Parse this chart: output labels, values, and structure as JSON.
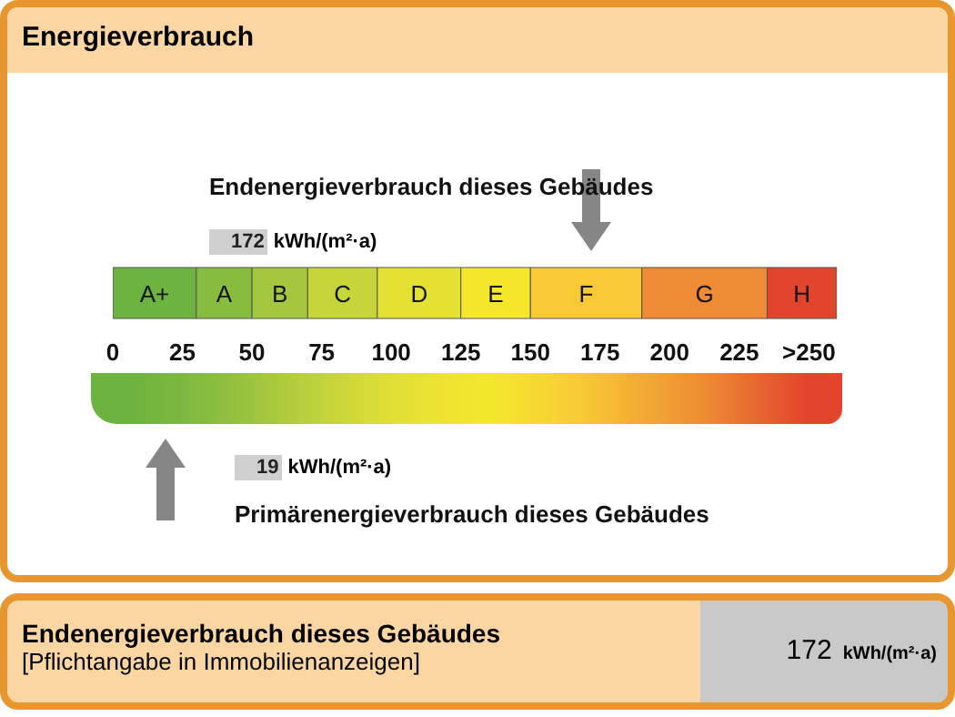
{
  "chart_data": {
    "type": "bar",
    "orientation": "horizontal",
    "stacked": true,
    "title": "Energieverbrauch",
    "categories": [
      null
    ],
    "tick_labels": "x",
    "xlim": [
      0,
      260
    ],
    "xticks": [
      0,
      25,
      50,
      75,
      100,
      125,
      150,
      175,
      200,
      225,
      {
        "value": 250,
        "label": ">250"
      }
    ],
    "series": [
      {
        "name": "A+",
        "color": "#6db33f",
        "values": [
          30
        ]
      },
      {
        "name": "A",
        "color": "#86bc40",
        "values": [
          20
        ]
      },
      {
        "name": "B",
        "color": "#a3c73e",
        "values": [
          20
        ]
      },
      {
        "name": "C",
        "color": "#c6d53a",
        "values": [
          25
        ]
      },
      {
        "name": "D",
        "color": "#e5e133",
        "values": [
          30
        ]
      },
      {
        "name": "E",
        "color": "#f5e82c",
        "values": [
          25
        ]
      },
      {
        "name": "F",
        "color": "#f7c935",
        "values": [
          40
        ]
      },
      {
        "name": "G",
        "color": "#ee8b34",
        "values": [
          45
        ]
      },
      {
        "name": "H",
        "color": "#e2452c",
        "values": [
          25
        ]
      }
    ],
    "annotations": [
      "Endenergieverbrauch dieses Gebäudes",
      "172 kWh/(m²·a)",
      "19 kWh/(m²·a)",
      "Primärenergieverbrauch dieses Gebäudes",
      "[Pflichtangabe in Immobilienanzeigen]"
    ]
  }
}
